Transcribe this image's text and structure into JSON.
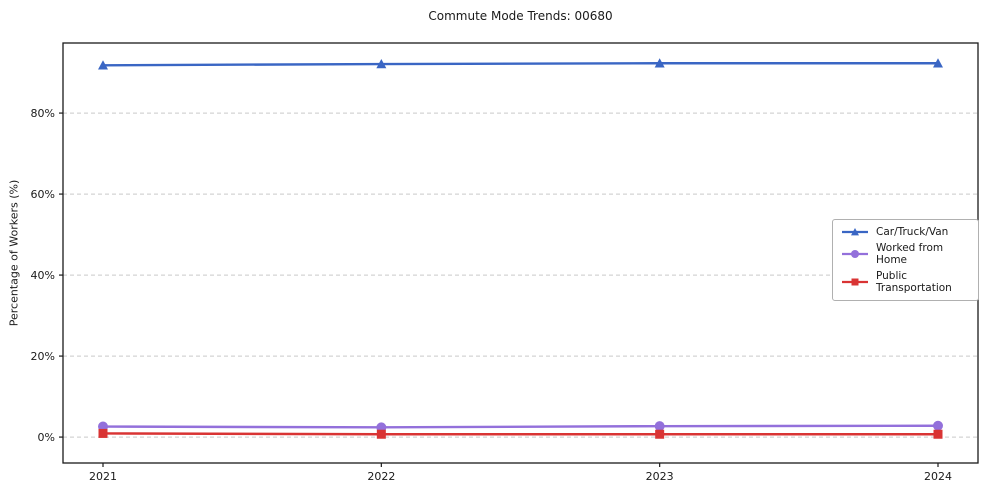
{
  "title": "Commute Mode Trends: 00680",
  "chart_data": {
    "type": "line",
    "title": "Commute Mode Trends: 00680",
    "xlabel": "",
    "ylabel": "Percentage of Workers (%)",
    "x": [
      2021,
      2022,
      2023,
      2024
    ],
    "x_tick_labels": [
      "2021",
      "2022",
      "2023",
      "2024"
    ],
    "yticks": [
      0,
      20,
      40,
      60,
      80
    ],
    "ytick_labels": [
      "0%",
      "20%",
      "40%",
      "60%",
      "80%"
    ],
    "ylim": [
      -6.4,
      97.3
    ],
    "grid": "dashed-horizontal",
    "legend_position": "center-right",
    "series": [
      {
        "name": "Car/Truck/Van",
        "color": "#3a66c4",
        "marker": "triangle",
        "values": [
          91.8,
          92.1,
          92.3,
          92.3
        ]
      },
      {
        "name": "Worked from Home",
        "color": "#9370db",
        "marker": "circle",
        "values": [
          2.6,
          2.4,
          2.7,
          2.8
        ]
      },
      {
        "name": "Public Transportation",
        "color": "#d93434",
        "marker": "square",
        "values": [
          0.9,
          0.7,
          0.7,
          0.7
        ]
      }
    ]
  }
}
